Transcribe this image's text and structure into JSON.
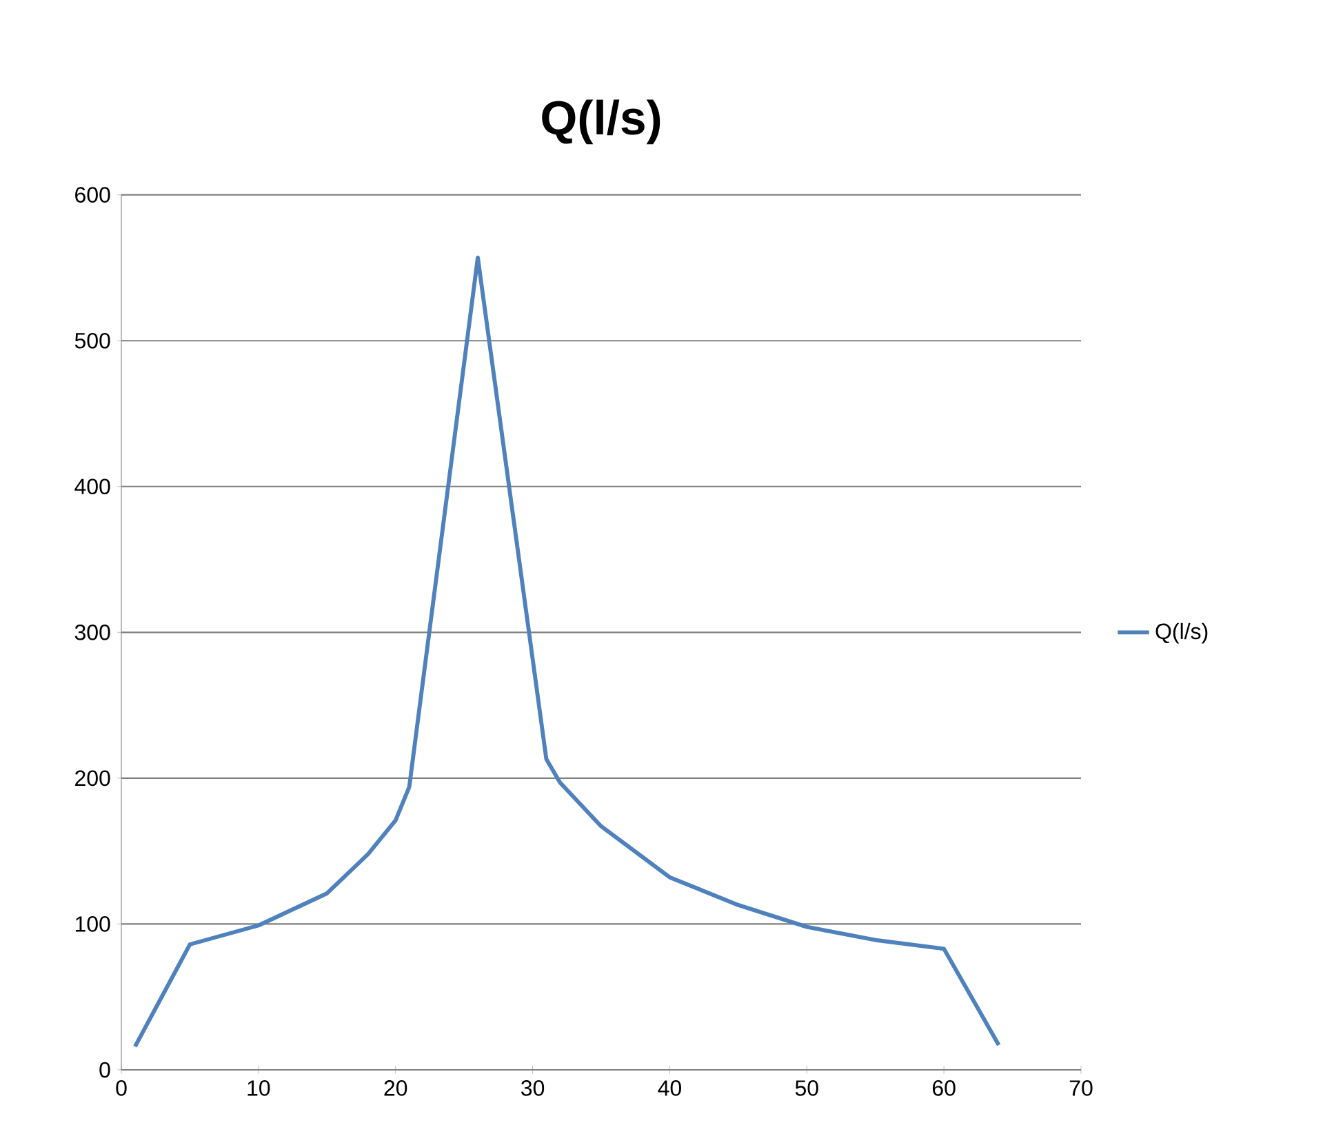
{
  "chart_data": {
    "type": "line",
    "title": "Q(l/s)",
    "x": [
      1,
      5,
      10,
      15,
      18,
      20,
      21,
      26,
      31,
      32,
      35,
      40,
      45,
      50,
      55,
      60,
      64
    ],
    "series": [
      {
        "name": "Q(l/s)",
        "color": "#4f81bd",
        "values": [
          16,
          86,
          99,
          121,
          148,
          171,
          194,
          557,
          213,
          197,
          167,
          132,
          113,
          98,
          89,
          83,
          17
        ]
      }
    ],
    "xlim": [
      0,
      70
    ],
    "xticks": [
      0,
      10,
      20,
      30,
      40,
      50,
      60,
      70
    ],
    "ylim": [
      0,
      600
    ],
    "yticks": [
      0,
      100,
      200,
      300,
      400,
      500,
      600
    ],
    "grid": "y",
    "legend": "right",
    "marker": "none",
    "line_style": "solid"
  }
}
